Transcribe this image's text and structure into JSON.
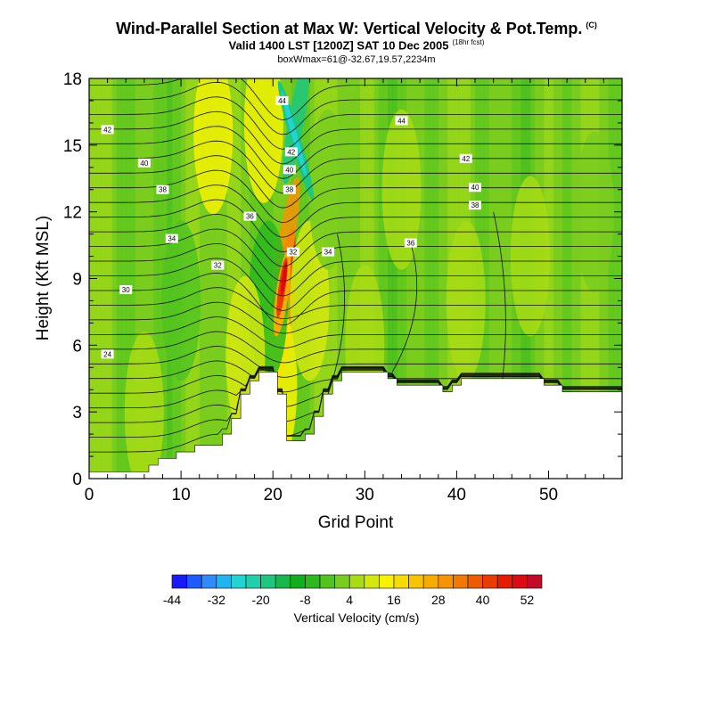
{
  "header": {
    "title": "Wind-Parallel Section at Max W: Vertical Velocity & Pot.Temp.",
    "title_mark": "(C)",
    "subtitle": "Valid 1400 LST [1200Z] SAT 10 Dec 2005",
    "subtitle_note": "(18hr fcst)",
    "subtitle2": "boxWmax=61@-32.67,19.57,2234m"
  },
  "chart_data": {
    "type": "heatmap",
    "title": "Wind-Parallel Section at Max W: Vertical Velocity & Pot.Temp.",
    "xlabel": "Grid Point",
    "ylabel": "Height (Kft MSL)",
    "xlim": [
      0,
      58
    ],
    "ylim": [
      0,
      18
    ],
    "x_ticks": [
      "0",
      "10",
      "20",
      "30",
      "40",
      "50"
    ],
    "y_ticks": [
      "0",
      "3",
      "6",
      "9",
      "12",
      "15",
      "18"
    ],
    "colorbar": {
      "label": "Vertical Velocity (cm/s)",
      "tick_labels": [
        "-44",
        "-32",
        "-20",
        "-8",
        "4",
        "16",
        "28",
        "40",
        "52"
      ],
      "colors": [
        "#1a1aff",
        "#1e5cff",
        "#2f8cff",
        "#20b4f0",
        "#22d3d3",
        "#1fd0a8",
        "#1ec780",
        "#16b84a",
        "#10ae1a",
        "#2db81e",
        "#52c41e",
        "#7acd1e",
        "#a8dc14",
        "#d4e80e",
        "#f6f200",
        "#f8dc00",
        "#f8c400",
        "#f8ac00",
        "#f69400",
        "#f27800",
        "#ee5c00",
        "#ea3c00",
        "#e61c00",
        "#dc0a14",
        "#c40a28"
      ]
    },
    "terrain_kft": [
      0.3,
      0.3,
      0.3,
      0.3,
      0.3,
      0.3,
      0.3,
      0.6,
      0.9,
      0.9,
      1.2,
      1.2,
      1.5,
      1.5,
      1.5,
      2.0,
      2.7,
      3.8,
      4.4,
      4.8,
      4.8,
      3.8,
      1.7,
      1.7,
      2.0,
      2.8,
      3.8,
      4.4,
      4.8,
      4.8,
      4.8,
      4.8,
      4.8,
      4.5,
      4.2,
      4.2,
      4.2,
      4.2,
      4.2,
      3.9,
      4.2,
      4.5,
      4.5,
      4.5,
      4.5,
      4.5,
      4.5,
      4.5,
      4.5,
      4.5,
      4.2,
      4.2,
      3.9,
      3.9,
      3.9,
      3.9,
      3.9,
      3.9,
      3.9
    ],
    "theta_contours": [
      {
        "label": "24",
        "y_far_kft": 5.5,
        "label_at": [
          2,
          5.6
        ]
      },
      {
        "label": "30",
        "y_far_kft": 8.4,
        "label_at": [
          4,
          8.5
        ]
      },
      {
        "label": "32",
        "y_far_kft": 9.5,
        "label_at": [
          14,
          9.6
        ]
      },
      {
        "label": "34",
        "y_far_kft": 10.6,
        "label_at": [
          9,
          10.8
        ]
      },
      {
        "label": "36",
        "y_far_kft": 12.4,
        "label_at": [
          17.5,
          11.8
        ]
      },
      {
        "label": "38",
        "y_far_kft": 13.0,
        "label_at": [
          8,
          13.0
        ]
      },
      {
        "label": "40",
        "y_far_kft": 14.3,
        "label_at": [
          6,
          14.2
        ]
      },
      {
        "label": "42",
        "y_far_kft": 15.7,
        "label_at": [
          2,
          15.7
        ]
      },
      {
        "label": "44",
        "y_far_kft": 16.9,
        "label_at": [
          34,
          16.1
        ]
      }
    ],
    "extra_contour_labels": [
      {
        "label": "44",
        "at": [
          21,
          17.0
        ]
      },
      {
        "label": "42",
        "at": [
          22,
          14.7
        ]
      },
      {
        "label": "40",
        "at": [
          21.8,
          13.9
        ]
      },
      {
        "label": "38",
        "at": [
          21.8,
          13.0
        ]
      },
      {
        "label": "32",
        "at": [
          22.2,
          10.2
        ]
      },
      {
        "label": "34",
        "at": [
          26,
          10.2
        ]
      },
      {
        "label": "36",
        "at": [
          35,
          10.6
        ]
      },
      {
        "label": "42",
        "at": [
          41,
          14.4
        ]
      },
      {
        "label": "40",
        "at": [
          42,
          13.1
        ]
      },
      {
        "label": "38",
        "at": [
          42,
          12.3
        ]
      }
    ],
    "w_features_cm_s": [
      {
        "x": 21.0,
        "y": 8.5,
        "value": 45
      },
      {
        "x": 21.5,
        "y": 10.8,
        "value": 30
      },
      {
        "x": 21.0,
        "y": 6.2,
        "value": 30
      },
      {
        "x": 20.5,
        "y": 4.2,
        "value": 12
      },
      {
        "x": 19.5,
        "y": 8.0,
        "value": -10
      },
      {
        "x": 19.0,
        "y": 16.0,
        "value": 12
      },
      {
        "x": 13.5,
        "y": 15.5,
        "value": 14
      },
      {
        "x": 22.5,
        "y": 16.0,
        "value": -24
      },
      {
        "x": 24.0,
        "y": 8.0,
        "value": 8
      },
      {
        "x": 26.0,
        "y": 13.0,
        "value": -2
      },
      {
        "x": 34.0,
        "y": 13.0,
        "value": 4
      },
      {
        "x": 30.0,
        "y": 6.0,
        "value": 2
      },
      {
        "x": 41.0,
        "y": 8.0,
        "value": 4
      },
      {
        "x": 48.0,
        "y": 10.0,
        "value": 6
      },
      {
        "x": 55.0,
        "y": 12.0,
        "value": 0
      },
      {
        "x": 6.0,
        "y": 3.0,
        "value": 2
      },
      {
        "x": 10.0,
        "y": 8.0,
        "value": -6
      },
      {
        "x": 17.0,
        "y": 5.5,
        "value": 8
      }
    ]
  }
}
